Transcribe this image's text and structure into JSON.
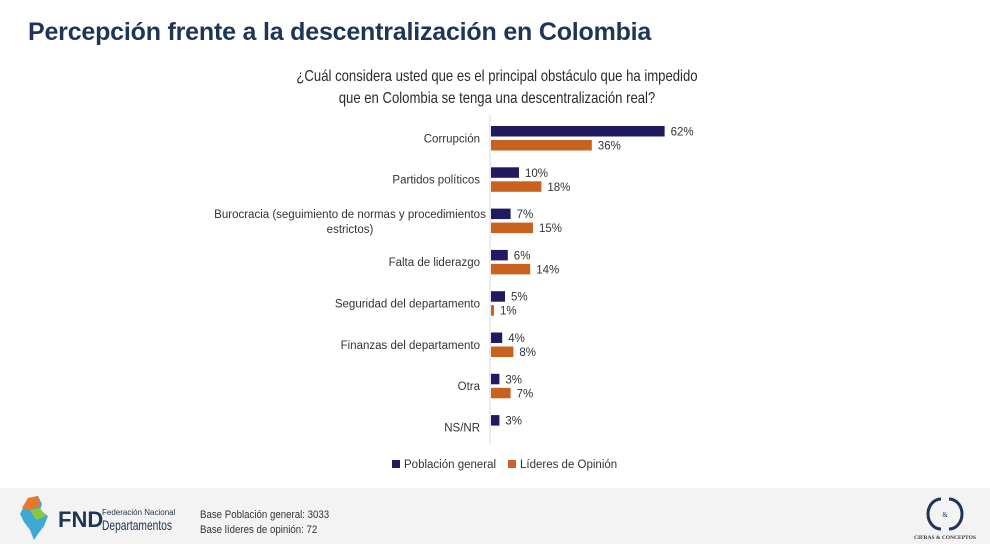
{
  "header": {
    "title": "Percepción frente a la descentralización en Colombia",
    "question_line1": "¿Cuál considera usted que es el principal obstáculo que ha impedido",
    "question_line2": "que en Colombia se tenga una descentralización real?"
  },
  "chart_data": {
    "type": "bar",
    "orientation": "horizontal",
    "categories": [
      [
        "Corrupción"
      ],
      [
        "Partidos políticos"
      ],
      [
        "Burocracia (seguimiento de normas y procedimientos",
        "estrictos)"
      ],
      [
        "Falta de liderazgo"
      ],
      [
        "Seguridad del departamento"
      ],
      [
        "Finanzas del departamento"
      ],
      [
        "Otra"
      ],
      [
        "NS/NR"
      ]
    ],
    "series": [
      {
        "name": "Población general",
        "color": "#1f1b5e",
        "values": [
          62,
          10,
          7,
          6,
          5,
          4,
          3,
          3
        ]
      },
      {
        "name": "Líderes de Opinión",
        "color": "#c8621e",
        "values": [
          36,
          18,
          15,
          14,
          1,
          8,
          7,
          null
        ]
      }
    ],
    "value_format": "percent",
    "data_labels": true,
    "legend": "bottom",
    "grid": false
  },
  "footer": {
    "fnd_logo_text": "FND Federación Nacional de Departamentos",
    "base_general": "Base Población general: 3033",
    "base_lideres": "Base líderes de opinión: 72",
    "cc_logo_text": "CIFRAS & CONCEPTOS"
  }
}
